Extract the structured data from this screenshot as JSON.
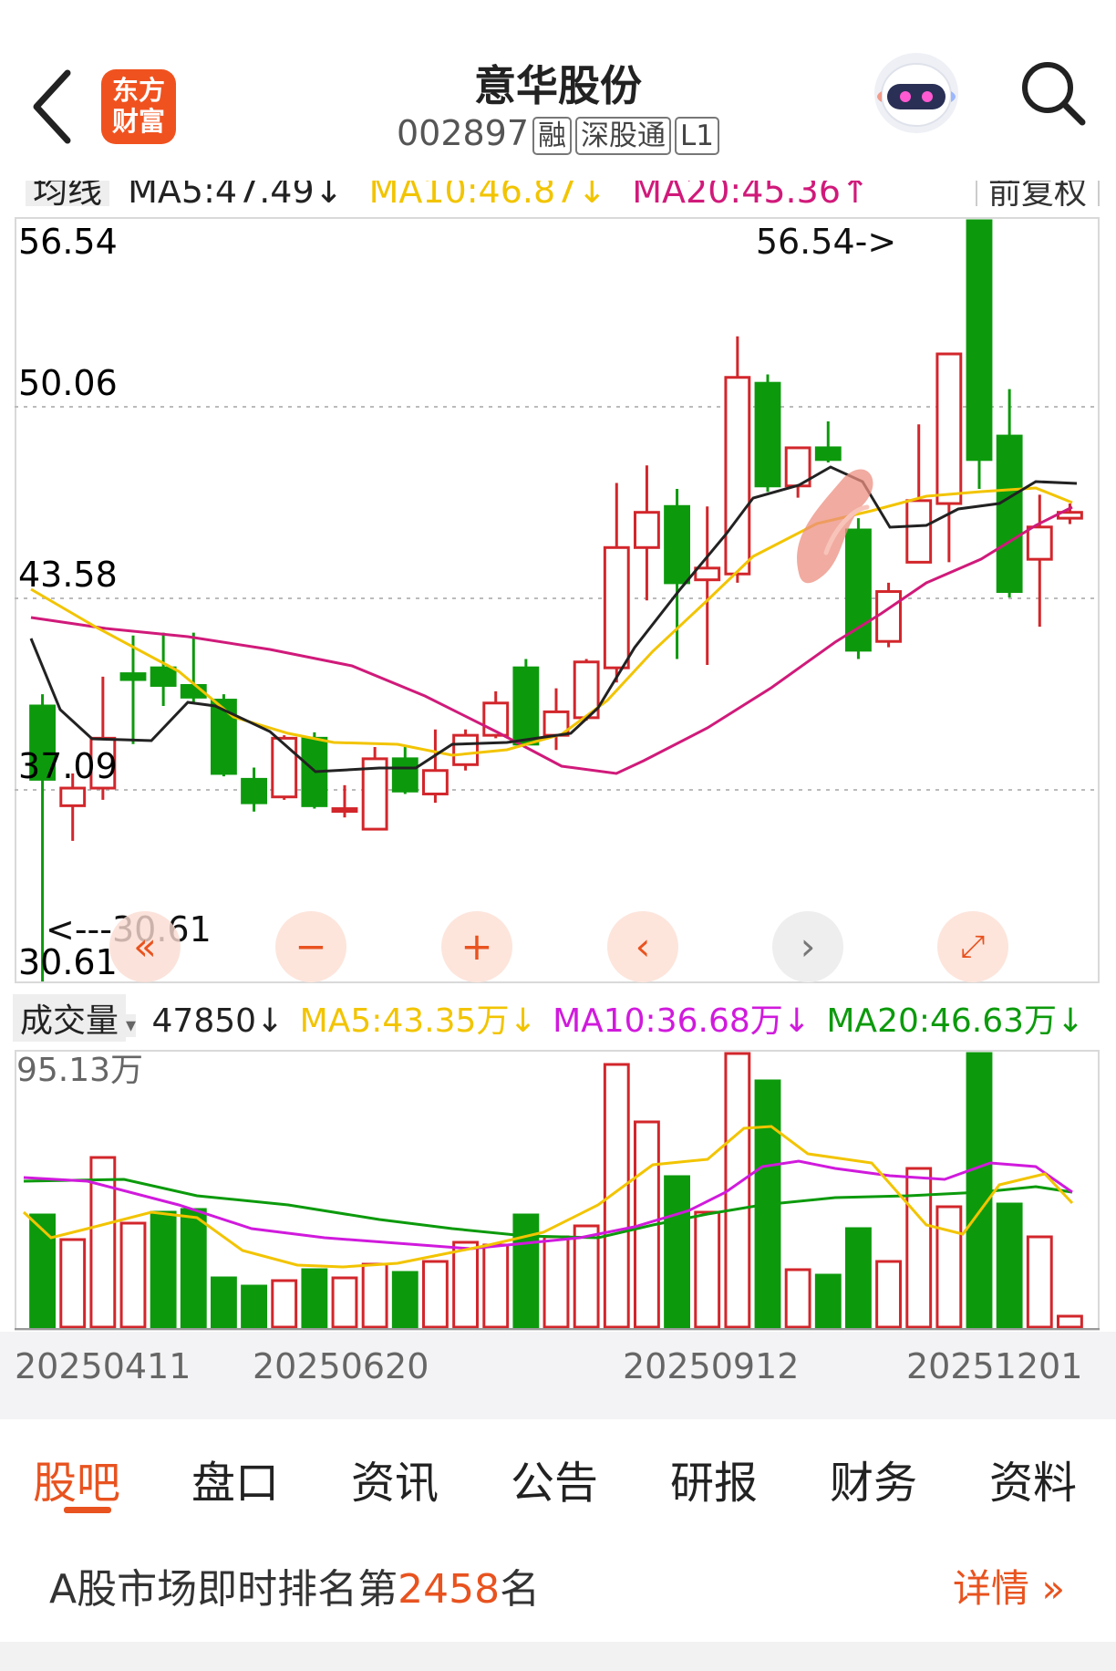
{
  "header": {
    "logo_text": "东方\n财富",
    "title": "意华股份",
    "code": "002897",
    "tags": [
      "融",
      "深股通",
      "L1"
    ],
    "icons": [
      "back-arrow-icon",
      "robot-avatar-icon",
      "search-icon"
    ]
  },
  "ma_bar": {
    "label": "均线",
    "ma5": "MA5:47.49↓",
    "ma10": "MA10:46.87↓",
    "ma20": "MA20:45.36↑",
    "fuquan": "前复权"
  },
  "price_chart": {
    "axis_labels": [
      "56.54",
      "50.06",
      "43.58",
      "37.09",
      "30.61"
    ],
    "high_marker": "56.54->",
    "low_marker": "<---30.61"
  },
  "volume": {
    "selector": "成交量",
    "current": "47850↓",
    "ma5": "MA5:43.35万↓",
    "ma10": "MA10:36.68万↓",
    "ma20": "MA20:46.63万↓",
    "max_label": "95.13万"
  },
  "dates": [
    "20250411",
    "20250620",
    "20250912",
    "20251201"
  ],
  "tabs": [
    "股吧",
    "盘口",
    "资讯",
    "公告",
    "研报",
    "财务",
    "资料"
  ],
  "active_tab": "股吧",
  "rank": {
    "prefix": "A股市场即时排名第",
    "number": "2458",
    "suffix": "名",
    "detail": "详情"
  },
  "colors": {
    "up": "#d2262b",
    "down": "#0c9a0c",
    "ma5": "#222222",
    "ma10": "#f2c400",
    "ma20": "#d01a7a",
    "accent": "#e8531f"
  },
  "chart_data": {
    "type": "candlestick",
    "ylim": [
      30.61,
      56.54
    ],
    "candles": [
      {
        "o": 40.0,
        "h": 40.4,
        "l": 30.61,
        "c": 37.5
      },
      {
        "o": 36.6,
        "h": 37.7,
        "l": 35.4,
        "c": 37.2
      },
      {
        "o": 37.2,
        "h": 41.0,
        "l": 36.8,
        "c": 38.9
      },
      {
        "o": 41.1,
        "h": 42.4,
        "l": 38.7,
        "c": 40.9
      },
      {
        "o": 41.3,
        "h": 42.5,
        "l": 40.0,
        "c": 40.7
      },
      {
        "o": 40.7,
        "h": 42.5,
        "l": 40.1,
        "c": 40.3
      },
      {
        "o": 40.2,
        "h": 40.4,
        "l": 37.6,
        "c": 37.7
      },
      {
        "o": 37.5,
        "h": 37.9,
        "l": 36.4,
        "c": 36.7
      },
      {
        "o": 36.9,
        "h": 39.0,
        "l": 36.8,
        "c": 38.9
      },
      {
        "o": 38.9,
        "h": 39.1,
        "l": 36.5,
        "c": 36.6
      },
      {
        "o": 36.5,
        "h": 37.3,
        "l": 36.2,
        "c": 36.5
      },
      {
        "o": 35.8,
        "h": 38.6,
        "l": 35.8,
        "c": 38.2
      },
      {
        "o": 38.2,
        "h": 38.6,
        "l": 37.0,
        "c": 37.1
      },
      {
        "o": 37.0,
        "h": 39.2,
        "l": 36.7,
        "c": 37.8
      },
      {
        "o": 38.0,
        "h": 39.2,
        "l": 37.8,
        "c": 39.0
      },
      {
        "o": 39.0,
        "h": 40.5,
        "l": 38.9,
        "c": 40.1
      },
      {
        "o": 41.3,
        "h": 41.6,
        "l": 38.7,
        "c": 38.7
      },
      {
        "o": 39.0,
        "h": 40.6,
        "l": 38.5,
        "c": 39.8
      },
      {
        "o": 39.6,
        "h": 41.6,
        "l": 39.5,
        "c": 41.5
      },
      {
        "o": 41.3,
        "h": 47.6,
        "l": 40.8,
        "c": 45.4
      },
      {
        "o": 45.4,
        "h": 48.2,
        "l": 43.6,
        "c": 46.6
      },
      {
        "o": 46.8,
        "h": 47.4,
        "l": 41.6,
        "c": 44.2
      },
      {
        "o": 44.3,
        "h": 46.8,
        "l": 41.4,
        "c": 44.7
      },
      {
        "o": 44.5,
        "h": 52.6,
        "l": 44.2,
        "c": 51.2
      },
      {
        "o": 51.0,
        "h": 51.3,
        "l": 47.3,
        "c": 47.5
      },
      {
        "o": 47.5,
        "h": 48.8,
        "l": 47.1,
        "c": 48.8
      },
      {
        "o": 48.8,
        "h": 49.7,
        "l": 48.3,
        "c": 48.4
      },
      {
        "o": 46.0,
        "h": 46.4,
        "l": 41.6,
        "c": 41.9
      },
      {
        "o": 42.2,
        "h": 44.2,
        "l": 42.0,
        "c": 43.9
      },
      {
        "o": 44.9,
        "h": 49.6,
        "l": 44.9,
        "c": 47.0
      },
      {
        "o": 46.9,
        "h": 52.0,
        "l": 44.9,
        "c": 52.0
      },
      {
        "o": 56.54,
        "h": 56.54,
        "l": 47.4,
        "c": 48.4
      },
      {
        "o": 49.2,
        "h": 50.8,
        "l": 43.7,
        "c": 43.9
      },
      {
        "o": 45.0,
        "h": 47.2,
        "l": 42.7,
        "c": 46.1
      },
      {
        "o": 46.4,
        "h": 46.9,
        "l": 46.2,
        "c": 46.6
      }
    ],
    "volume_max": "95.13万"
  }
}
